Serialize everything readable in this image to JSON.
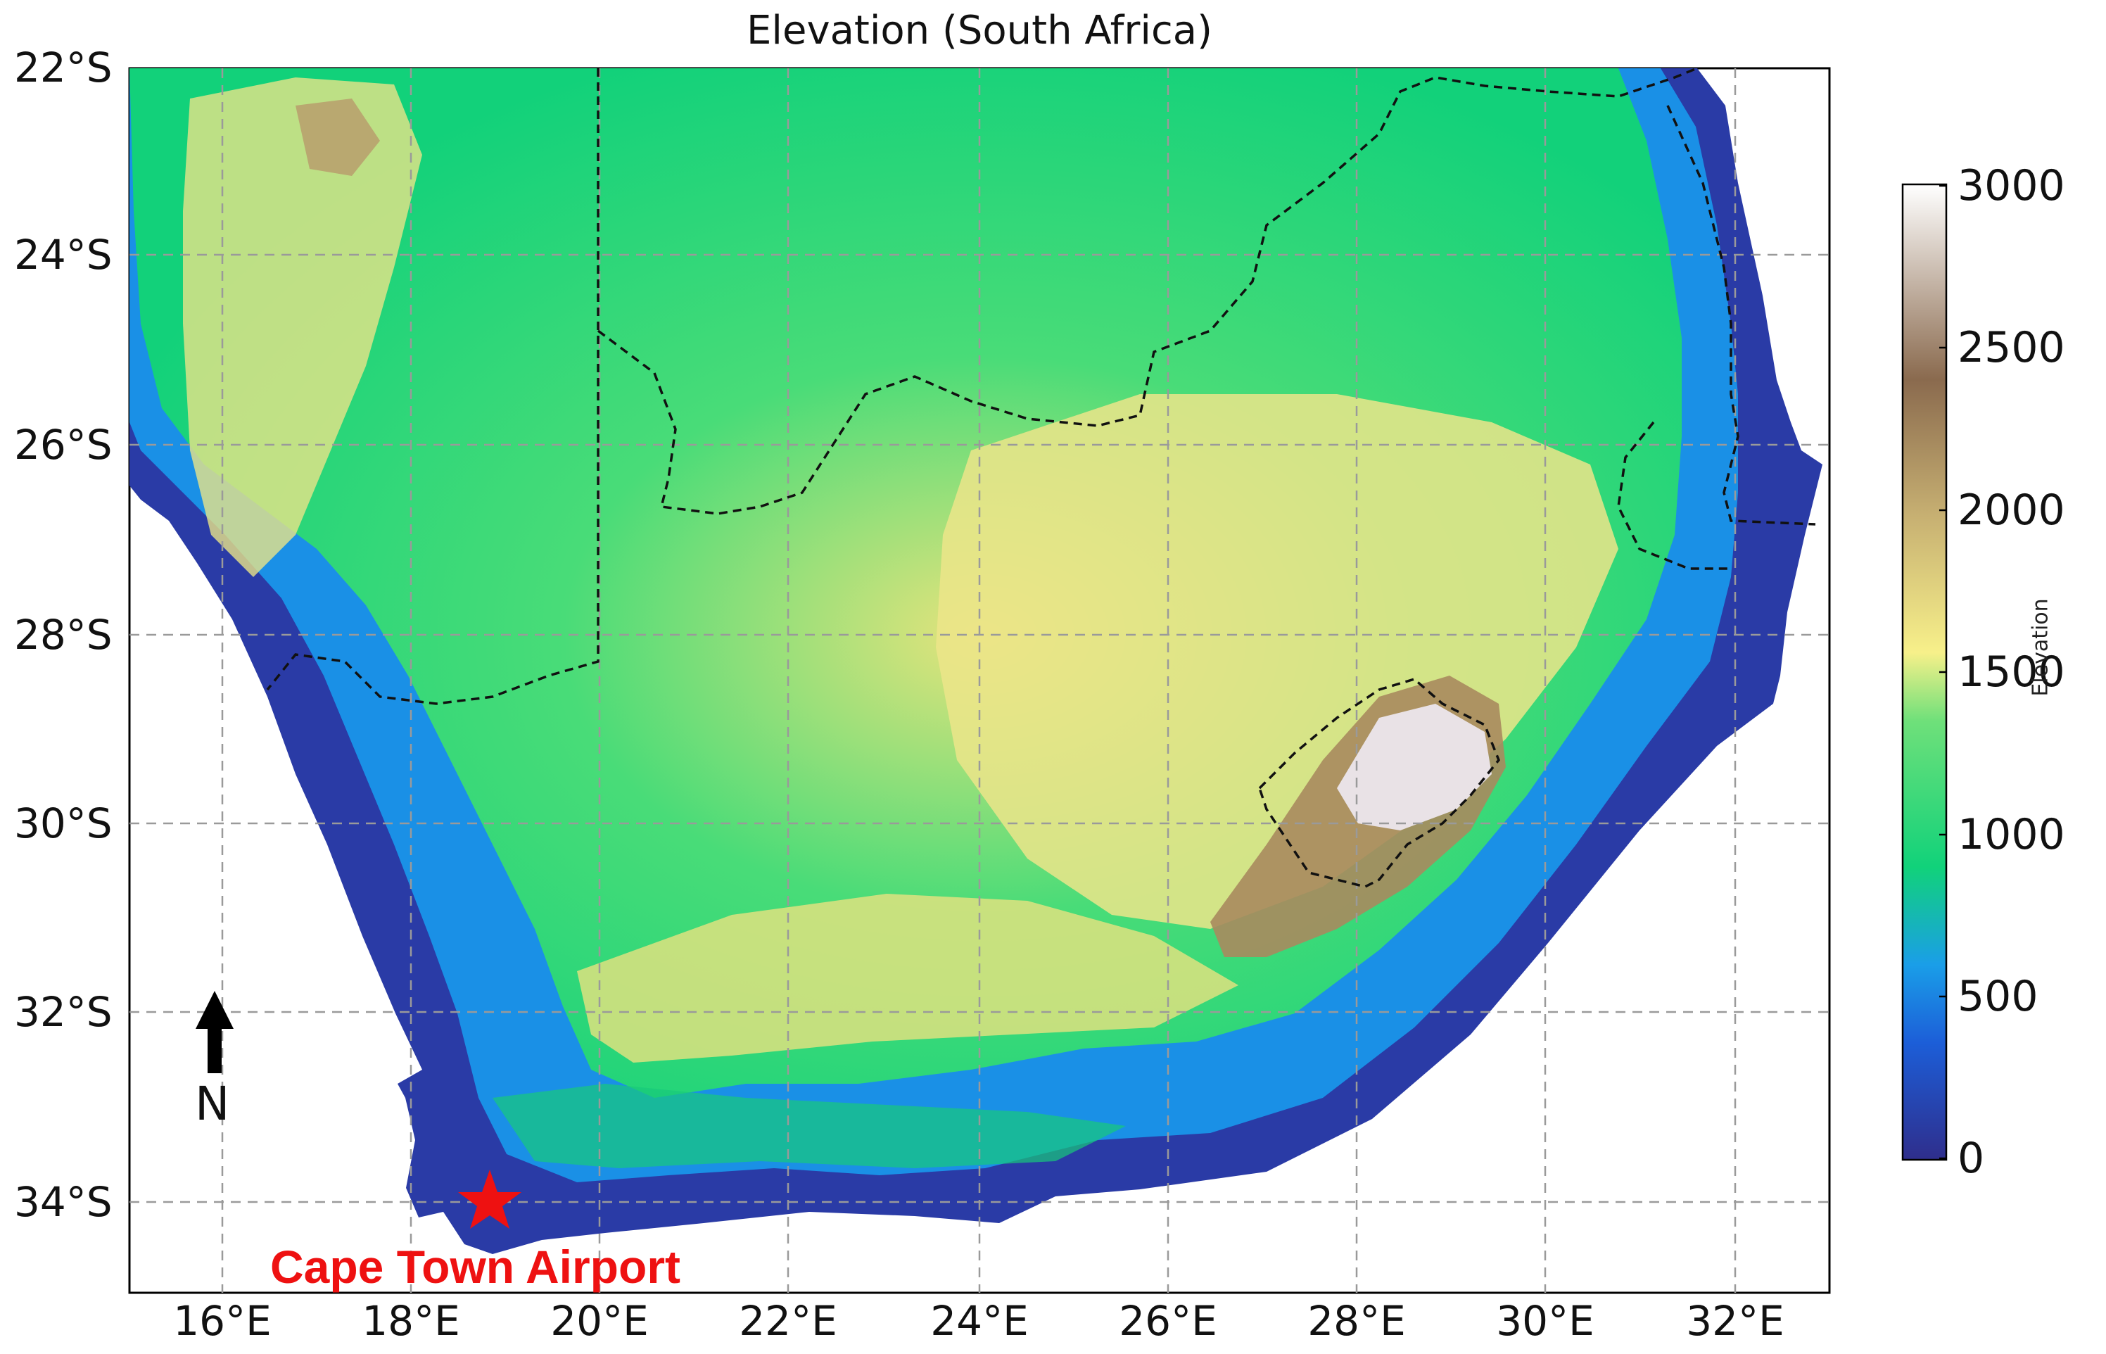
{
  "map": {
    "title": "Elevation (South Africa)",
    "lat_ticks": [
      "22°S",
      "24°S",
      "26°S",
      "28°S",
      "30°S",
      "32°S",
      "34°S"
    ],
    "lon_ticks": [
      "16°E",
      "18°E",
      "20°E",
      "22°E",
      "24°E",
      "26°E",
      "28°E",
      "30°E",
      "32°E"
    ],
    "lon_range": [
      15,
      33
    ],
    "lat_range": [
      -35,
      -22
    ],
    "gridlines": "dashed gray",
    "colormap": "terrain",
    "colorbar": {
      "label": "Elevation",
      "ticks": [
        "3000",
        "2500",
        "2000",
        "1500",
        "1000",
        "500",
        "0"
      ],
      "range": [
        0,
        3000
      ],
      "colors": [
        "#2f2e8c",
        "#1a8ee8",
        "#11d27a",
        "#f7f08a",
        "#9c7b58",
        "#ffffff"
      ]
    },
    "marker": {
      "label": "Cape Town Airport",
      "symbol": "star",
      "color": "#ee1111",
      "lon": 18.6,
      "lat": -33.97
    },
    "north_arrow": {
      "label": "N"
    },
    "colors": {
      "ocean": "#ffffff",
      "lowland": "#2f2e8c",
      "coast": "#1a8ee8",
      "plateau": "#11d27a",
      "highland": "#f0e68c",
      "mountain": "#9c7b58"
    }
  }
}
